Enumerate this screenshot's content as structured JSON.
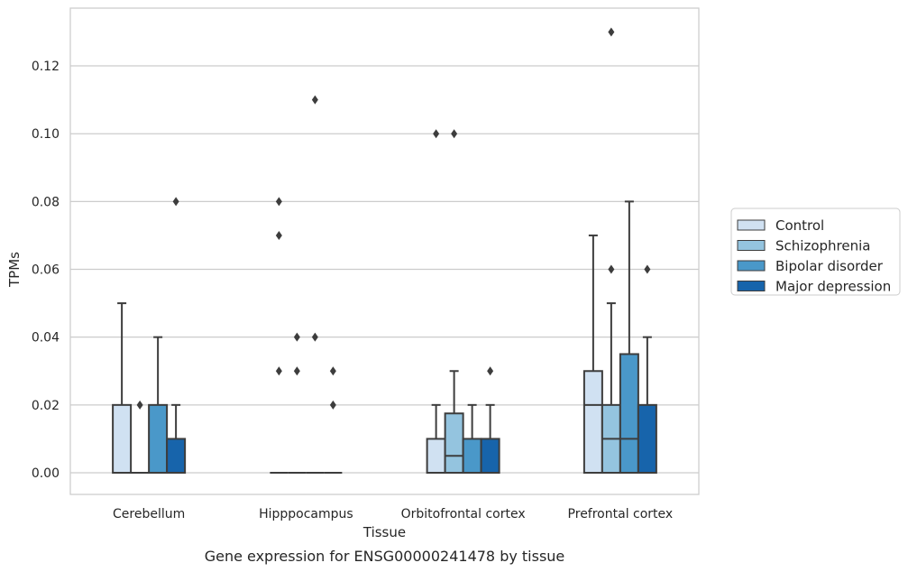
{
  "chart_data": {
    "type": "box",
    "title": "Gene expression for ENSG00000241478 by tissue",
    "xlabel": "Tissue",
    "ylabel": "TPMs",
    "ylim": [
      -0.0065,
      0.1365
    ],
    "yticks": [
      "0.00",
      "0.02",
      "0.04",
      "0.06",
      "0.08",
      "0.10",
      "0.12"
    ],
    "ytick_values": [
      0,
      0.02,
      0.04,
      0.06,
      0.08,
      0.1,
      0.12
    ],
    "grid": true,
    "legend_position": "right",
    "categories": [
      "Cerebellum",
      "Hipppocampus",
      "Orbitofrontal cortex",
      "Prefrontal cortex"
    ],
    "series": [
      {
        "name": "Control",
        "color": "#d0e1f2",
        "boxes": [
          {
            "q1": 0,
            "median": 0,
            "q3": 0.02,
            "whisker_low": 0,
            "whisker_high": 0.05,
            "outliers": []
          },
          {
            "q1": 0,
            "median": 0,
            "q3": 0,
            "whisker_low": 0,
            "whisker_high": 0,
            "outliers": [
              0.03,
              0.07,
              0.08
            ]
          },
          {
            "q1": 0,
            "median": 0,
            "q3": 0.01,
            "whisker_low": 0,
            "whisker_high": 0.02,
            "outliers": [
              0.1
            ]
          },
          {
            "q1": 0,
            "median": 0.02,
            "q3": 0.03,
            "whisker_low": 0,
            "whisker_high": 0.07,
            "outliers": []
          }
        ]
      },
      {
        "name": "Schizophrenia",
        "color": "#94c4df",
        "boxes": [
          {
            "q1": 0,
            "median": 0,
            "q3": 0,
            "whisker_low": 0,
            "whisker_high": 0,
            "outliers": [
              0.02
            ]
          },
          {
            "q1": 0,
            "median": 0,
            "q3": 0,
            "whisker_low": 0,
            "whisker_high": 0,
            "outliers": [
              0.03,
              0.04
            ]
          },
          {
            "q1": 0,
            "median": 0.005,
            "q3": 0.0175,
            "whisker_low": 0,
            "whisker_high": 0.03,
            "outliers": [
              0.1
            ]
          },
          {
            "q1": 0,
            "median": 0.01,
            "q3": 0.02,
            "whisker_low": 0,
            "whisker_high": 0.05,
            "outliers": [
              0.06,
              0.13
            ]
          }
        ]
      },
      {
        "name": "Bipolar disorder",
        "color": "#4a98c9",
        "boxes": [
          {
            "q1": 0,
            "median": 0,
            "q3": 0.02,
            "whisker_low": 0,
            "whisker_high": 0.04,
            "outliers": []
          },
          {
            "q1": 0,
            "median": 0,
            "q3": 0,
            "whisker_low": 0,
            "whisker_high": 0,
            "outliers": [
              0.04,
              0.11
            ]
          },
          {
            "q1": 0,
            "median": 0,
            "q3": 0.01,
            "whisker_low": 0,
            "whisker_high": 0.02,
            "outliers": []
          },
          {
            "q1": 0,
            "median": 0.01,
            "q3": 0.035,
            "whisker_low": 0,
            "whisker_high": 0.08,
            "outliers": []
          }
        ]
      },
      {
        "name": "Major depression",
        "color": "#1764ab",
        "boxes": [
          {
            "q1": 0,
            "median": 0,
            "q3": 0.01,
            "whisker_low": 0,
            "whisker_high": 0.02,
            "outliers": [
              0.08
            ]
          },
          {
            "q1": 0,
            "median": 0,
            "q3": 0,
            "whisker_low": 0,
            "whisker_high": 0,
            "outliers": [
              0.02,
              0.03
            ]
          },
          {
            "q1": 0,
            "median": 0,
            "q3": 0.01,
            "whisker_low": 0,
            "whisker_high": 0.02,
            "outliers": [
              0.03
            ]
          },
          {
            "q1": 0,
            "median": 0,
            "q3": 0.02,
            "whisker_low": 0,
            "whisker_high": 0.04,
            "outliers": [
              0.06
            ]
          }
        ]
      }
    ]
  }
}
